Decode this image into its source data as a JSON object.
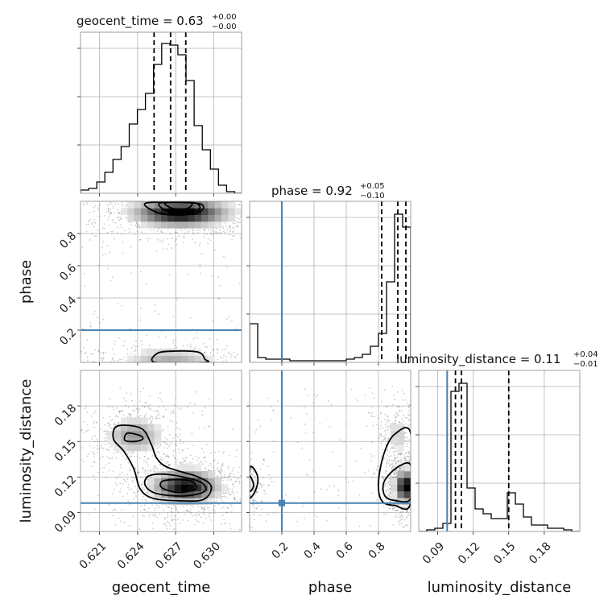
{
  "chart_data": {
    "type": "corner",
    "parameters": [
      "geocent_time",
      "phase",
      "luminosity_distance"
    ],
    "truth_color": "#4682b4",
    "truths": {
      "geocent_time": null,
      "phase": 0.2,
      "luminosity_distance": 0.098
    },
    "titles": [
      {
        "name": "geocent_time",
        "text": "geocent_time = 0.63",
        "plus": "+0.00",
        "minus": "−0.00"
      },
      {
        "name": "phase",
        "text": "phase = 0.92",
        "plus": "+0.05",
        "minus": "−0.10"
      },
      {
        "name": "luminosity_distance",
        "text": "luminosity_distance = 0.11",
        "plus": "+0.04",
        "minus": "−0.01"
      }
    ],
    "axes": {
      "geocent_time": {
        "label": "geocent_time",
        "range": [
          0.6195,
          0.6322
        ],
        "ticks": [
          0.621,
          0.624,
          0.627,
          0.63
        ],
        "tick_labels": [
          "0.621",
          "0.624",
          "0.627",
          "0.630"
        ]
      },
      "phase": {
        "label": "phase",
        "range": [
          0.0,
          1.0
        ],
        "ticks": [
          0.2,
          0.4,
          0.6,
          0.8
        ],
        "tick_labels": [
          "0.2",
          "0.4",
          "0.6",
          "0.8"
        ]
      },
      "luminosity_distance": {
        "label": "luminosity_distance",
        "range": [
          0.074,
          0.21
        ],
        "ticks": [
          0.09,
          0.12,
          0.15,
          0.18
        ],
        "tick_labels": [
          "0.09",
          "0.12",
          "0.15",
          "0.18"
        ]
      }
    },
    "marginals": [
      {
        "param": "geocent_time",
        "bin_edges": [
          0.6195,
          0.62014,
          0.62078,
          0.62142,
          0.62206,
          0.6227,
          0.62334,
          0.62398,
          0.62462,
          0.62526,
          0.6259,
          0.62654,
          0.62718,
          0.62782,
          0.62846,
          0.6291,
          0.62974,
          0.63038,
          0.63102,
          0.63166,
          0.6323
        ],
        "counts": [
          0.02,
          0.03,
          0.07,
          0.13,
          0.21,
          0.29,
          0.43,
          0.52,
          0.62,
          0.8,
          0.93,
          0.92,
          0.86,
          0.7,
          0.42,
          0.27,
          0.15,
          0.05,
          0.01,
          0.0
        ],
        "quantiles": [
          0.6253,
          0.6266,
          0.6278
        ],
        "ylim": [
          0,
          1.0
        ]
      },
      {
        "param": "phase",
        "bin_edges": [
          0.0,
          0.05,
          0.1,
          0.15,
          0.2,
          0.25,
          0.3,
          0.35,
          0.4,
          0.45,
          0.5,
          0.55,
          0.6,
          0.65,
          0.7,
          0.75,
          0.8,
          0.85,
          0.9,
          0.95,
          1.0
        ],
        "counts": [
          0.24,
          0.03,
          0.02,
          0.02,
          0.02,
          0.01,
          0.01,
          0.01,
          0.01,
          0.01,
          0.01,
          0.01,
          0.02,
          0.03,
          0.05,
          0.1,
          0.18,
          0.5,
          0.92,
          0.84
        ],
        "quantiles": [
          0.82,
          0.92,
          0.97
        ],
        "ylim": [
          0,
          1.0
        ]
      },
      {
        "param": "luminosity_distance",
        "bin_edges": [
          0.074,
          0.0808,
          0.0876,
          0.0944,
          0.1012,
          0.108,
          0.1148,
          0.1216,
          0.1284,
          0.1352,
          0.142,
          0.1488,
          0.1556,
          0.1624,
          0.1692,
          0.176,
          0.1828,
          0.1896,
          0.1964,
          0.2032,
          0.21
        ],
        "counts": [
          0.0,
          0.01,
          0.02,
          0.05,
          0.87,
          0.92,
          0.27,
          0.14,
          0.11,
          0.08,
          0.08,
          0.24,
          0.17,
          0.09,
          0.04,
          0.04,
          0.02,
          0.02,
          0.01,
          0.0
        ],
        "quantiles": [
          0.105,
          0.11,
          0.15
        ],
        "ylim": [
          0,
          1.0
        ]
      }
    ],
    "pairs": [
      {
        "x": "geocent_time",
        "y": "phase",
        "modes": [
          {
            "x": 0.6274,
            "y": 0.93,
            "sx": 0.0022,
            "sy": 0.05,
            "w": 0.75
          },
          {
            "x": 0.6266,
            "y": 0.03,
            "sx": 0.0022,
            "sy": 0.03,
            "w": 0.25
          }
        ],
        "contours": [
          [
            [
              0.6247,
              0.99
            ],
            [
              0.6254,
              0.935
            ],
            [
              0.6268,
              0.915
            ],
            [
              0.6286,
              0.925
            ],
            [
              0.6292,
              0.965
            ],
            [
              0.6284,
              0.99
            ]
          ],
          [
            [
              0.6258,
              0.99
            ],
            [
              0.6262,
              0.945
            ],
            [
              0.6274,
              0.935
            ],
            [
              0.6288,
              0.945
            ],
            [
              0.6285,
              0.99
            ]
          ],
          [
            [
              0.6262,
              0.99
            ],
            [
              0.6268,
              0.955
            ],
            [
              0.6279,
              0.955
            ],
            [
              0.6282,
              0.99
            ]
          ],
          [
            [
              0.6254,
              0.0
            ],
            [
              0.6256,
              0.058
            ],
            [
              0.627,
              0.07
            ],
            [
              0.6288,
              0.063
            ],
            [
              0.6293,
              0.02
            ],
            [
              0.6293,
              0.0
            ]
          ]
        ]
      },
      {
        "x": "geocent_time",
        "y": "luminosity_distance",
        "modes": [
          {
            "x": 0.6278,
            "y": 0.112,
            "sx": 0.0015,
            "sy": 0.008,
            "w": 0.7
          },
          {
            "x": 0.6238,
            "y": 0.155,
            "sx": 0.0013,
            "sy": 0.009,
            "w": 0.3
          }
        ],
        "contours": [
          [
            [
              0.6224,
              0.163
            ],
            [
              0.6243,
              0.161
            ],
            [
              0.6251,
              0.147
            ],
            [
              0.6255,
              0.136
            ],
            [
              0.6264,
              0.128
            ],
            [
              0.6288,
              0.12
            ],
            [
              0.6298,
              0.112
            ],
            [
              0.6292,
              0.101
            ],
            [
              0.6272,
              0.1
            ],
            [
              0.6252,
              0.102
            ],
            [
              0.6242,
              0.11
            ],
            [
              0.6237,
              0.127
            ],
            [
              0.6229,
              0.142
            ],
            [
              0.6221,
              0.152
            ]
          ],
          [
            [
              0.6232,
              0.157
            ],
            [
              0.6242,
              0.155
            ],
            [
              0.6244,
              0.152
            ],
            [
              0.6238,
              0.15
            ],
            [
              0.623,
              0.151
            ]
          ],
          [
            [
              0.6249,
              0.121
            ],
            [
              0.6265,
              0.122
            ],
            [
              0.6289,
              0.116
            ],
            [
              0.6293,
              0.108
            ],
            [
              0.6277,
              0.104
            ],
            [
              0.6255,
              0.106
            ],
            [
              0.6246,
              0.113
            ]
          ],
          [
            [
              0.6261,
              0.117
            ],
            [
              0.6281,
              0.117
            ],
            [
              0.6286,
              0.11
            ],
            [
              0.6272,
              0.107
            ],
            [
              0.6259,
              0.111
            ]
          ]
        ]
      },
      {
        "x": "phase",
        "y": "luminosity_distance",
        "modes": [
          {
            "x": 0.97,
            "y": 0.112,
            "sx": 0.04,
            "sy": 0.008,
            "w": 0.75
          },
          {
            "x": 0.92,
            "y": 0.155,
            "sx": 0.05,
            "sy": 0.01,
            "w": 0.15
          },
          {
            "x": 0.02,
            "y": 0.112,
            "sx": 0.03,
            "sy": 0.008,
            "w": 0.1
          }
        ],
        "contours": [
          [
            [
              1.0,
              0.157
            ],
            [
              0.9,
              0.156
            ],
            [
              0.835,
              0.14
            ],
            [
              0.8,
              0.116
            ],
            [
              0.82,
              0.1
            ],
            [
              0.9,
              0.096
            ],
            [
              1.0,
              0.098
            ]
          ],
          [
            [
              1.0,
              0.13
            ],
            [
              0.915,
              0.128
            ],
            [
              0.835,
              0.116
            ],
            [
              0.84,
              0.104
            ],
            [
              0.91,
              0.1
            ],
            [
              1.0,
              0.102
            ]
          ],
          [
            [
              0.0,
              0.103
            ],
            [
              0.04,
              0.11
            ],
            [
              0.05,
              0.12
            ],
            [
              0.02,
              0.128
            ],
            [
              0.0,
              0.126
            ]
          ],
          [
            [
              0.0,
              0.108
            ],
            [
              0.025,
              0.113
            ],
            [
              0.0,
              0.121
            ]
          ]
        ]
      }
    ]
  }
}
